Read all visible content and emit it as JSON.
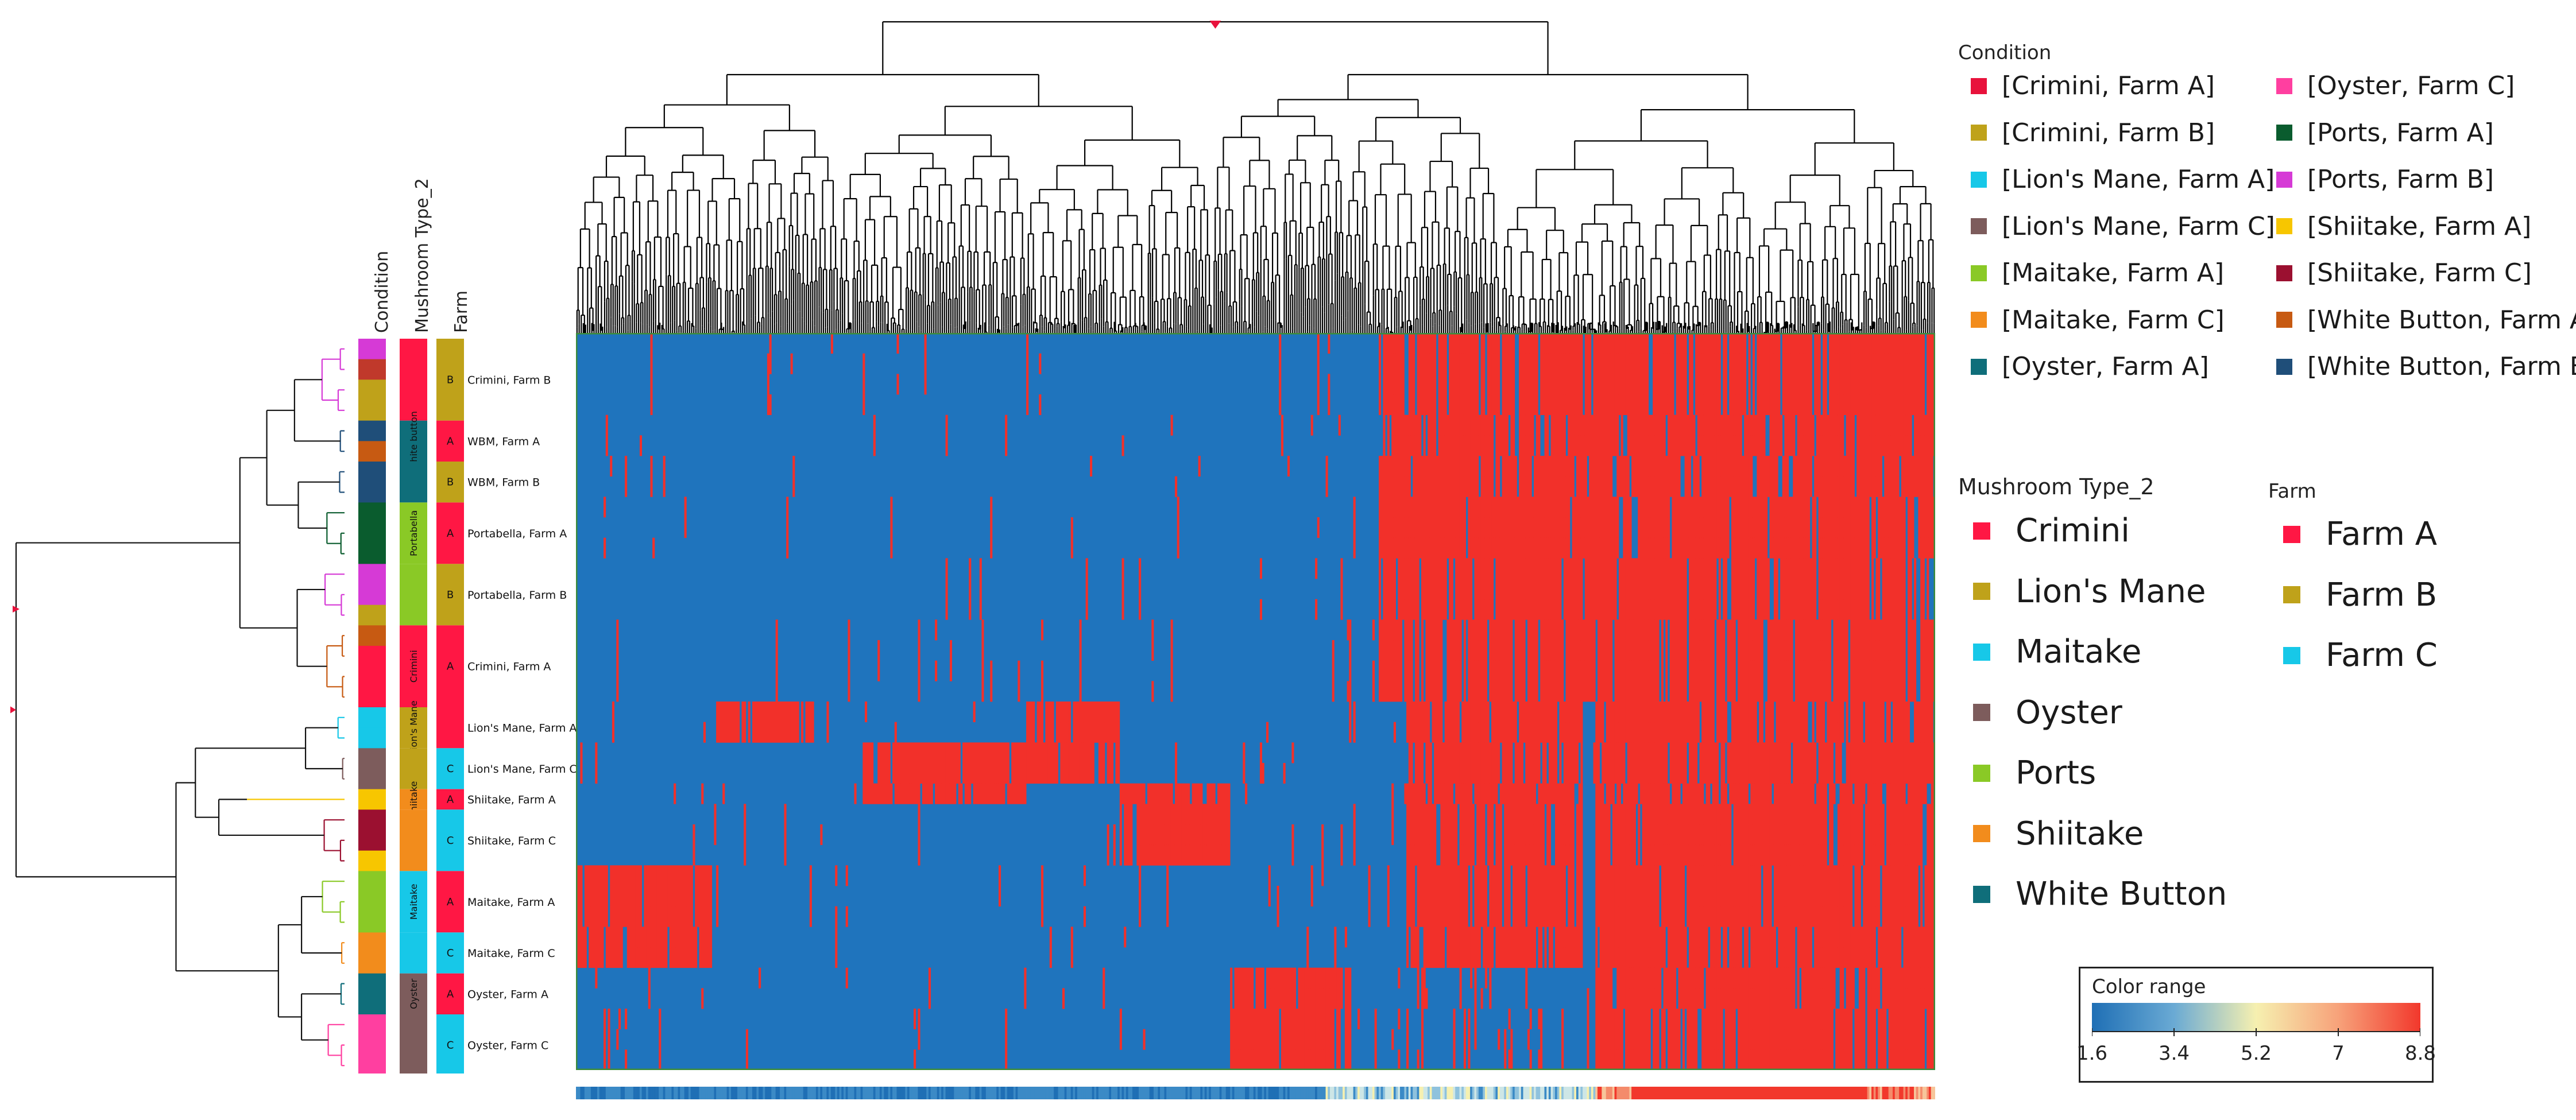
{
  "chart_data": {
    "type": "heatmap",
    "title": "",
    "row_annotation_headers": [
      "Condition",
      "Mushroom Type_2",
      "Farm"
    ],
    "row_groups": [
      {
        "label": "Crimini, Farm B",
        "farm": "B",
        "type_label": "",
        "type_color": "#ff1744",
        "farm_color": "#bfa21a",
        "cond_colors": [
          "#d63ad6",
          "#c0392b",
          "#bfa21a",
          "#bfa21a"
        ]
      },
      {
        "label": "WBM, Farm A",
        "farm": "A",
        "type_label": "White button",
        "type_color": "#0f6e7a",
        "farm_color": "#ff1744",
        "cond_colors": [
          "#1f4e79",
          "#c75a12"
        ]
      },
      {
        "label": "WBM, Farm B",
        "farm": "B",
        "type_label": "",
        "type_color": "#0f6e7a",
        "farm_color": "#bfa21a",
        "cond_colors": [
          "#1f4e79",
          "#1f4e79"
        ]
      },
      {
        "label": "Portabella, Farm A",
        "farm": "A",
        "type_label": "Portabella",
        "type_color": "#8ac926",
        "farm_color": "#ff1744",
        "cond_colors": [
          "#0a5c2e",
          "#0a5c2e",
          "#0a5c2e"
        ]
      },
      {
        "label": "Portabella, Farm B",
        "farm": "B",
        "type_label": "",
        "type_color": "#8ac926",
        "farm_color": "#bfa21a",
        "cond_colors": [
          "#d63ad6",
          "#d63ad6",
          "#bfa21a"
        ]
      },
      {
        "label": "Crimini, Farm A",
        "farm": "A",
        "type_label": "Crimini",
        "type_color": "#ff1744",
        "farm_color": "#ff1744",
        "cond_colors": [
          "#c75a12",
          "#ff1744",
          "#ff1744",
          "#ff1744"
        ]
      },
      {
        "label": "Lion's Mane, Farm A",
        "farm": "",
        "type_label": "Lion's Mane",
        "type_color": "#bfa21a",
        "farm_color": "#ff1744",
        "cond_colors": [
          "#17c8e8",
          "#17c8e8"
        ]
      },
      {
        "label": "Lion's Mane, Farm C",
        "farm": "C",
        "type_label": "",
        "type_color": "#bfa21a",
        "farm_color": "#17c8e8",
        "cond_colors": [
          "#7d5c5c",
          "#7d5c5c"
        ]
      },
      {
        "label": "Shiitake, Farm A",
        "farm": "A",
        "type_label": "Shiitake",
        "type_color": "#f28c1c",
        "farm_color": "#ff1744",
        "cond_colors": [
          "#f7c600"
        ]
      },
      {
        "label": "Shiitake, Farm C",
        "farm": "C",
        "type_label": "",
        "type_color": "#f28c1c",
        "farm_color": "#17c8e8",
        "cond_colors": [
          "#9b1030",
          "#9b1030",
          "#f7c600"
        ]
      },
      {
        "label": "Maitake, Farm A",
        "farm": "A",
        "type_label": "Maitake",
        "type_color": "#17c8e8",
        "farm_color": "#ff1744",
        "cond_colors": [
          "#8ac926",
          "#8ac926",
          "#8ac926"
        ]
      },
      {
        "label": "Maitake, Farm C",
        "farm": "C",
        "type_label": "",
        "type_color": "#17c8e8",
        "farm_color": "#17c8e8",
        "cond_colors": [
          "#f28c1c",
          "#f28c1c"
        ]
      },
      {
        "label": "Oyster, Farm A",
        "farm": "A",
        "type_label": "Oyster",
        "type_color": "#7d5c5c",
        "farm_color": "#ff1744",
        "cond_colors": [
          "#0f6e7a",
          "#0f6e7a"
        ]
      },
      {
        "label": "Oyster, Farm C",
        "farm": "C",
        "type_label": "",
        "type_color": "#7d5c5c",
        "farm_color": "#17c8e8",
        "cond_colors": [
          "#ff3fa0",
          "#ff3fa0",
          "#ff3fa0"
        ]
      }
    ],
    "legends": {
      "condition": {
        "title": "Condition",
        "items": [
          {
            "label": "[Crimini, Farm A]",
            "color": "#e8123c"
          },
          {
            "label": "[Oyster, Farm C]",
            "color": "#ff3fa0"
          },
          {
            "label": "[Crimini, Farm B]",
            "color": "#bfa21a"
          },
          {
            "label": "[Ports, Farm A]",
            "color": "#0a5c2e"
          },
          {
            "label": "[Lion's Mane, Farm A]",
            "color": "#17c8e8"
          },
          {
            "label": "[Ports, Farm B]",
            "color": "#d63ad6"
          },
          {
            "label": "[Lion's Mane, Farm C]",
            "color": "#7d5c5c"
          },
          {
            "label": "[Shiitake, Farm A]",
            "color": "#f7c600"
          },
          {
            "label": "[Maitake, Farm A]",
            "color": "#8ac926"
          },
          {
            "label": "[Shiitake, Farm C]",
            "color": "#9b1030"
          },
          {
            "label": "[Maitake, Farm C]",
            "color": "#f28c1c"
          },
          {
            "label": "[White Button, Farm A]",
            "color": "#c75a12"
          },
          {
            "label": "[Oyster, Farm A]",
            "color": "#0f6e7a"
          },
          {
            "label": "[White Button, Farm B]",
            "color": "#1f4e79"
          }
        ]
      },
      "mushroom_type": {
        "title": "Mushroom Type_2",
        "items": [
          {
            "label": "Crimini",
            "color": "#ff1744"
          },
          {
            "label": "Lion's Mane",
            "color": "#bfa21a"
          },
          {
            "label": "Maitake",
            "color": "#17c8e8"
          },
          {
            "label": "Oyster",
            "color": "#7d5c5c"
          },
          {
            "label": "Ports",
            "color": "#8ac926"
          },
          {
            "label": "Shiitake",
            "color": "#f28c1c"
          },
          {
            "label": "White Button",
            "color": "#0f6e7a"
          }
        ]
      },
      "farm": {
        "title": "Farm",
        "items": [
          {
            "label": "Farm A",
            "color": "#ff1744"
          },
          {
            "label": "Farm B",
            "color": "#bfa21a"
          },
          {
            "label": "Farm C",
            "color": "#17c8e8"
          }
        ]
      }
    },
    "color_range": {
      "title": "Color range",
      "ticks": [
        1.6,
        3.4,
        5.2,
        7,
        8.8
      ],
      "tick_labels": [
        "1.6",
        "3.4",
        "5.2",
        "7",
        "8.8"
      ],
      "colors": [
        "#1f6fb5",
        "#6aaad4",
        "#f6f0b0",
        "#f7a27a",
        "#f2382c"
      ]
    },
    "heatmap_colors": {
      "low": "#1f74bd",
      "high": "#f2302a"
    }
  }
}
